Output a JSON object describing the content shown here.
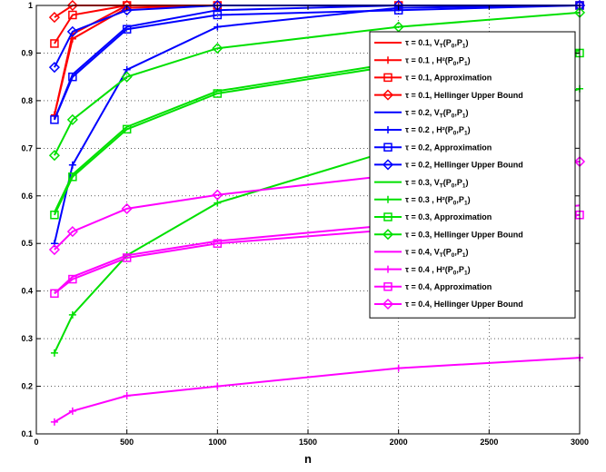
{
  "chart_data": {
    "type": "line",
    "title": "",
    "xlabel": "n",
    "ylabel": "",
    "xlim": [
      0,
      3000
    ],
    "ylim": [
      0.1,
      1.0
    ],
    "xticks": [
      "0",
      "500",
      "1000",
      "1500",
      "2000",
      "2500",
      "3000"
    ],
    "yticks": [
      "0.1",
      "0.2",
      "0.3",
      "0.4",
      "0.5",
      "0.6",
      "0.7",
      "0.8",
      "0.9",
      "1"
    ],
    "grid": true,
    "legend_position": "right",
    "x": [
      100,
      200,
      500,
      1000,
      2000,
      3000
    ],
    "series": [
      {
        "name": "τ = 0.1, V_T(P_0,P_1)",
        "color": "#ff0000",
        "marker": "none",
        "values": [
          0.77,
          0.94,
          1.0,
          1.0,
          1.0,
          1.0
        ]
      },
      {
        "name": "τ = 0.1 , H²(P_0,P_1)",
        "color": "#ff0000",
        "marker": "plus",
        "values": [
          0.77,
          0.93,
          0.995,
          1.0,
          1.0,
          1.0
        ]
      },
      {
        "name": "τ = 0.1,  Approximation",
        "color": "#ff0000",
        "marker": "square",
        "values": [
          0.92,
          0.98,
          1.0,
          1.0,
          1.0,
          1.0
        ]
      },
      {
        "name": "τ = 0.1,  Hellinger Upper Bound",
        "color": "#ff0000",
        "marker": "diamond",
        "values": [
          0.975,
          1.0,
          1.0,
          1.0,
          1.0,
          1.0
        ]
      },
      {
        "name": "τ = 0.2, V_T(P_0,P_1)",
        "color": "#0000ff",
        "marker": "none",
        "values": [
          0.76,
          0.855,
          0.955,
          0.99,
          1.0,
          1.0
        ]
      },
      {
        "name": "τ = 0.2 , H²(P_0,P_1)",
        "color": "#0000ff",
        "marker": "plus",
        "values": [
          0.5,
          0.665,
          0.865,
          0.955,
          0.995,
          1.0
        ]
      },
      {
        "name": "τ = 0.2,  Approximation",
        "color": "#0000ff",
        "marker": "square",
        "values": [
          0.76,
          0.85,
          0.95,
          0.98,
          0.99,
          1.0
        ]
      },
      {
        "name": "τ = 0.2,  Hellinger Upper Bound",
        "color": "#0000ff",
        "marker": "diamond",
        "values": [
          0.87,
          0.945,
          0.99,
          1.0,
          1.0,
          1.0
        ]
      },
      {
        "name": "τ = 0.3, V_T(P_0,P_1)",
        "color": "#00e000",
        "marker": "none",
        "values": [
          0.565,
          0.645,
          0.745,
          0.82,
          0.88,
          0.905
        ]
      },
      {
        "name": "τ = 0.3 , H²(P_0,P_1)",
        "color": "#00e000",
        "marker": "plus",
        "values": [
          0.27,
          0.35,
          0.475,
          0.585,
          0.7,
          0.825
        ]
      },
      {
        "name": "τ = 0.3,  Approximation",
        "color": "#00e000",
        "marker": "square",
        "values": [
          0.56,
          0.64,
          0.74,
          0.815,
          0.875,
          0.9
        ]
      },
      {
        "name": "τ = 0.3,  Hellinger Upper Bound",
        "color": "#00e000",
        "marker": "diamond",
        "values": [
          0.685,
          0.76,
          0.85,
          0.91,
          0.955,
          0.985
        ]
      },
      {
        "name": "τ = 0.4, V_T(P_0,P_1)",
        "color": "#ff00ff",
        "marker": "none",
        "values": [
          0.395,
          0.43,
          0.475,
          0.505,
          0.54,
          0.58
        ]
      },
      {
        "name": "τ = 0.4 , H²(P_0,P_1)",
        "color": "#ff00ff",
        "marker": "plus",
        "values": [
          0.125,
          0.148,
          0.18,
          0.2,
          0.238,
          0.26
        ]
      },
      {
        "name": "τ = 0.4,  Approximation",
        "color": "#ff00ff",
        "marker": "square",
        "values": [
          0.395,
          0.425,
          0.47,
          0.5,
          0.53,
          0.56
        ]
      },
      {
        "name": "τ = 0.4,  Hellinger Upper Bound",
        "color": "#ff00ff",
        "marker": "diamond",
        "values": [
          0.487,
          0.525,
          0.573,
          0.602,
          0.645,
          0.672
        ]
      }
    ]
  }
}
